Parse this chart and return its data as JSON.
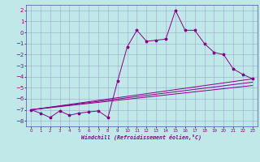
{
  "xlabel": "Windchill (Refroidissement éolien,°C)",
  "bg_color": "#c0e8e8",
  "line_color": "#880088",
  "grid_color": "#99aacc",
  "xlim": [
    -0.5,
    23.5
  ],
  "ylim": [
    -8.5,
    2.5
  ],
  "xticks": [
    0,
    1,
    2,
    3,
    4,
    5,
    6,
    7,
    8,
    9,
    10,
    11,
    12,
    13,
    14,
    15,
    16,
    17,
    18,
    19,
    20,
    21,
    22,
    23
  ],
  "yticks": [
    2,
    1,
    0,
    -1,
    -2,
    -3,
    -4,
    -5,
    -6,
    -7,
    -8
  ],
  "series": [
    [
      0,
      -7.0
    ],
    [
      1,
      -7.3
    ],
    [
      2,
      -7.7
    ],
    [
      3,
      -7.1
    ],
    [
      4,
      -7.5
    ],
    [
      5,
      -7.3
    ],
    [
      6,
      -7.2
    ],
    [
      7,
      -7.1
    ],
    [
      8,
      -7.7
    ],
    [
      9,
      -4.4
    ],
    [
      10,
      -1.3
    ],
    [
      11,
      0.2
    ],
    [
      12,
      -0.8
    ],
    [
      13,
      -0.7
    ],
    [
      14,
      -0.6
    ],
    [
      15,
      2.0
    ],
    [
      16,
      0.2
    ],
    [
      17,
      0.2
    ],
    [
      18,
      -1.0
    ],
    [
      19,
      -1.8
    ],
    [
      20,
      -2.0
    ],
    [
      21,
      -3.3
    ],
    [
      22,
      -3.8
    ],
    [
      23,
      -4.2
    ]
  ],
  "line2": [
    [
      0,
      -7.0
    ],
    [
      23,
      -4.2
    ]
  ],
  "line3": [
    [
      0,
      -7.0
    ],
    [
      23,
      -4.5
    ]
  ],
  "line4": [
    [
      0,
      -7.0
    ],
    [
      23,
      -4.8
    ]
  ]
}
